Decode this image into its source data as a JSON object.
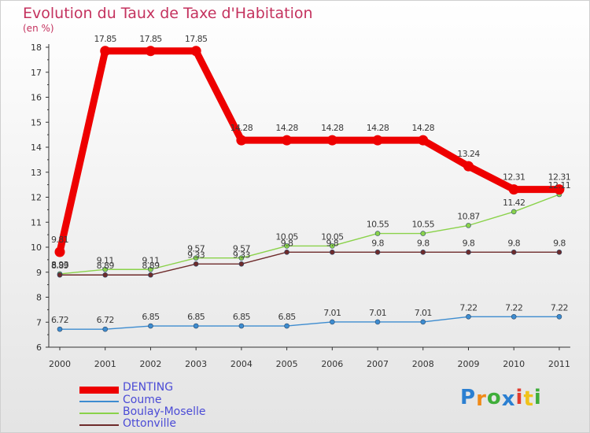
{
  "chart_data": {
    "type": "line",
    "title": "Evolution du Taux de Taxe d'Habitation",
    "ylabel": "(en %)",
    "xlabel": "",
    "ylim": [
      6,
      18
    ],
    "yticks": [
      "6",
      "7",
      "8",
      "9",
      "10",
      "11",
      "12",
      "13",
      "14",
      "15",
      "16",
      "17",
      "18"
    ],
    "categories": [
      "2000",
      "2001",
      "2002",
      "2003",
      "2004",
      "2005",
      "2006",
      "2007",
      "2008",
      "2009",
      "2010",
      "2011"
    ],
    "grid": false,
    "legend_position": "bottom-left",
    "series": [
      {
        "name": "DENTING",
        "color": "#ee0000",
        "values": [
          9.81,
          17.85,
          17.85,
          17.85,
          14.28,
          14.28,
          14.28,
          14.28,
          14.28,
          13.24,
          12.31,
          12.31
        ],
        "labels": [
          "9.81",
          "17.85",
          "17.85",
          "17.85",
          "14.28",
          "14.28",
          "14.28",
          "14.28",
          "14.28",
          "13.24",
          "12.31",
          "12.31"
        ]
      },
      {
        "name": "Coume",
        "color": "#3d8cd0",
        "values": [
          6.72,
          6.72,
          6.85,
          6.85,
          6.85,
          6.85,
          7.01,
          7.01,
          7.01,
          7.22,
          7.22,
          7.22
        ],
        "labels": [
          "6.72",
          "6.72",
          "6.85",
          "6.85",
          "6.85",
          "6.85",
          "7.01",
          "7.01",
          "7.01",
          "7.22",
          "7.22",
          "7.22"
        ]
      },
      {
        "name": "Boulay-Moselle",
        "color": "#8ad24a",
        "values": [
          8.93,
          9.11,
          9.11,
          9.57,
          9.57,
          10.05,
          10.05,
          10.55,
          10.55,
          10.87,
          11.42,
          12.11
        ],
        "labels": [
          "8.93",
          "9.11",
          "9.11",
          "9.57",
          "9.57",
          "10.05",
          "10.05",
          "10.55",
          "10.55",
          "10.87",
          "11.42",
          "12.11"
        ]
      },
      {
        "name": "Ottonville",
        "color": "#6e2b2b",
        "values": [
          8.89,
          8.89,
          8.89,
          9.33,
          9.33,
          9.8,
          9.8,
          9.8,
          9.8,
          9.8,
          9.8,
          9.8
        ],
        "labels": [
          "8.89",
          "8.89",
          "8.89",
          "9.33",
          "9.33",
          "9.8",
          "9.8",
          "9.8",
          "9.8",
          "9.8",
          "9.8",
          "9.8"
        ]
      }
    ]
  },
  "legend": {
    "items": [
      {
        "label": "DENTING"
      },
      {
        "label": "Coume"
      },
      {
        "label": "Boulay-Moselle"
      },
      {
        "label": "Ottonville"
      }
    ]
  },
  "branding": {
    "letters": [
      "P",
      "r",
      "o",
      "x",
      "i",
      "t",
      "i"
    ],
    "colors": [
      "#2b7fd1",
      "#f08a18",
      "#3fae3a",
      "#2b7fd1",
      "#e23b2e",
      "#f0c21a",
      "#3fae3a"
    ]
  }
}
